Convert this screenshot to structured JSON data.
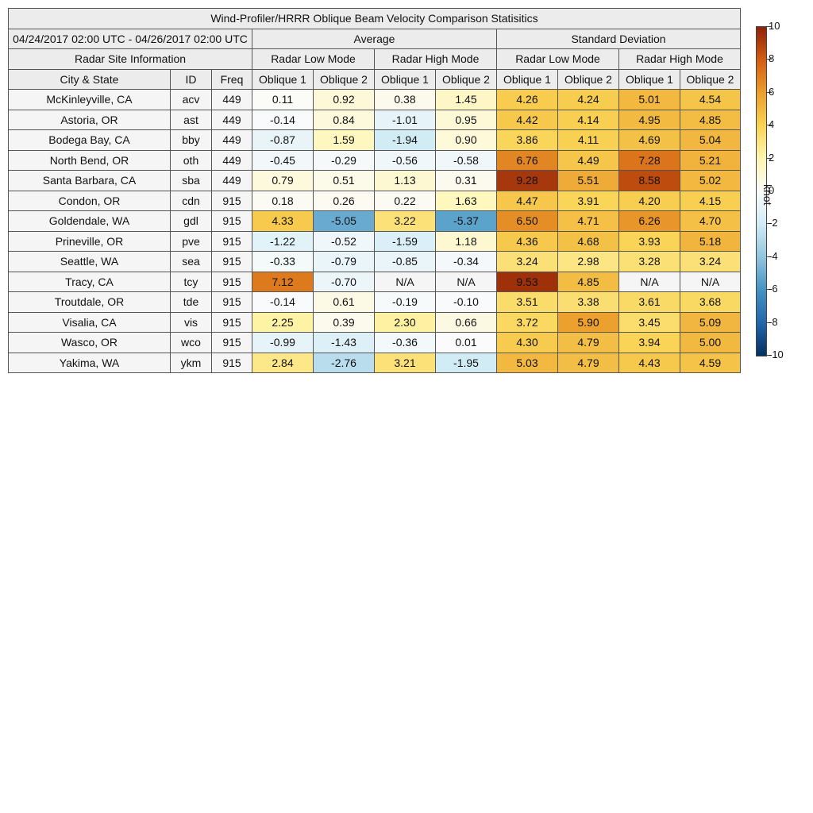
{
  "chart_data": {
    "type": "heatmap",
    "title": "Wind-Profiler/HRRR Oblique Beam Velocity Comparison Statisitics",
    "period": "04/24/2017 02:00 UTC - 04/26/2017 02:00 UTC",
    "group_headers": {
      "site_info": "Radar Site Information",
      "average": "Average",
      "stddev": "Standard Deviation"
    },
    "mode_headers": [
      "Radar Low Mode",
      "Radar High Mode",
      "Radar Low Mode",
      "Radar High Mode"
    ],
    "column_headers": [
      "City & State",
      "ID",
      "Freq",
      "Oblique 1",
      "Oblique 2",
      "Oblique 1",
      "Oblique 2",
      "Oblique 1",
      "Oblique 2",
      "Oblique 1",
      "Oblique 2"
    ],
    "rows": [
      {
        "city": "McKinleyville, CA",
        "id": "acv",
        "freq": "449",
        "values": [
          "0.11",
          "0.92",
          "0.38",
          "1.45",
          "4.26",
          "4.24",
          "5.01",
          "4.54"
        ]
      },
      {
        "city": "Astoria, OR",
        "id": "ast",
        "freq": "449",
        "values": [
          "-0.14",
          "0.84",
          "-1.01",
          "0.95",
          "4.42",
          "4.14",
          "4.95",
          "4.85"
        ]
      },
      {
        "city": "Bodega Bay, CA",
        "id": "bby",
        "freq": "449",
        "values": [
          "-0.87",
          "1.59",
          "-1.94",
          "0.90",
          "3.86",
          "4.11",
          "4.69",
          "5.04"
        ]
      },
      {
        "city": "North Bend, OR",
        "id": "oth",
        "freq": "449",
        "values": [
          "-0.45",
          "-0.29",
          "-0.56",
          "-0.58",
          "6.76",
          "4.49",
          "7.28",
          "5.21"
        ]
      },
      {
        "city": "Santa Barbara, CA",
        "id": "sba",
        "freq": "449",
        "values": [
          "0.79",
          "0.51",
          "1.13",
          "0.31",
          "9.28",
          "5.51",
          "8.58",
          "5.02"
        ]
      },
      {
        "city": "Condon, OR",
        "id": "cdn",
        "freq": "915",
        "values": [
          "0.18",
          "0.26",
          "0.22",
          "1.63",
          "4.47",
          "3.91",
          "4.20",
          "4.15"
        ]
      },
      {
        "city": "Goldendale, WA",
        "id": "gdl",
        "freq": "915",
        "values": [
          "4.33",
          "-5.05",
          "3.22",
          "-5.37",
          "6.50",
          "4.71",
          "6.26",
          "4.70"
        ]
      },
      {
        "city": "Prineville, OR",
        "id": "pve",
        "freq": "915",
        "values": [
          "-1.22",
          "-0.52",
          "-1.59",
          "1.18",
          "4.36",
          "4.68",
          "3.93",
          "5.18"
        ]
      },
      {
        "city": "Seattle, WA",
        "id": "sea",
        "freq": "915",
        "values": [
          "-0.33",
          "-0.79",
          "-0.85",
          "-0.34",
          "3.24",
          "2.98",
          "3.28",
          "3.24"
        ]
      },
      {
        "city": "Tracy, CA",
        "id": "tcy",
        "freq": "915",
        "values": [
          "7.12",
          "-0.70",
          "N/A",
          "N/A",
          "9.53",
          "4.85",
          "N/A",
          "N/A"
        ]
      },
      {
        "city": "Troutdale, OR",
        "id": "tde",
        "freq": "915",
        "values": [
          "-0.14",
          "0.61",
          "-0.19",
          "-0.10",
          "3.51",
          "3.38",
          "3.61",
          "3.68"
        ]
      },
      {
        "city": "Visalia, CA",
        "id": "vis",
        "freq": "915",
        "values": [
          "2.25",
          "0.39",
          "2.30",
          "0.66",
          "3.72",
          "5.90",
          "3.45",
          "5.09"
        ]
      },
      {
        "city": "Wasco, OR",
        "id": "wco",
        "freq": "915",
        "values": [
          "-0.99",
          "-1.43",
          "-0.36",
          "0.01",
          "4.30",
          "4.79",
          "3.94",
          "5.00"
        ]
      },
      {
        "city": "Yakima, WA",
        "id": "ykm",
        "freq": "915",
        "values": [
          "2.84",
          "-2.76",
          "3.21",
          "-1.95",
          "5.03",
          "4.79",
          "4.43",
          "4.59"
        ]
      }
    ],
    "colorbar": {
      "min": -10,
      "max": 10,
      "unit": "knot",
      "ticks": [
        10,
        8,
        6,
        4,
        2,
        0,
        -2,
        -4,
        -6,
        -8,
        -10
      ],
      "colors": [
        "#053061",
        "#2166ac",
        "#4393c3",
        "#92c5de",
        "#d1ecf6",
        "#fbfbfb",
        "#fff6b0",
        "#f9d354",
        "#eb9e2d",
        "#d35d12",
        "#8e2208"
      ],
      "na_color": "#f5f5f5"
    }
  }
}
